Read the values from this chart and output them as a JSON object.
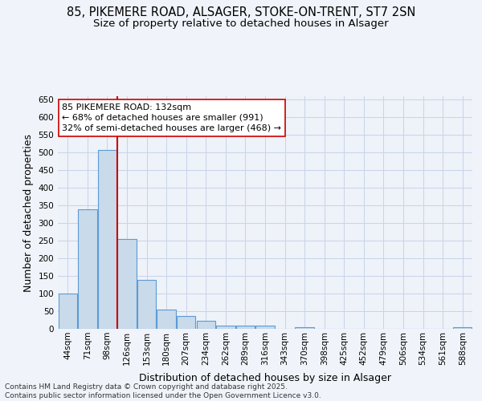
{
  "title": "85, PIKEMERE ROAD, ALSAGER, STOKE-ON-TRENT, ST7 2SN",
  "subtitle": "Size of property relative to detached houses in Alsager",
  "xlabel": "Distribution of detached houses by size in Alsager",
  "ylabel": "Number of detached properties",
  "categories": [
    "44sqm",
    "71sqm",
    "98sqm",
    "126sqm",
    "153sqm",
    "180sqm",
    "207sqm",
    "234sqm",
    "262sqm",
    "289sqm",
    "316sqm",
    "343sqm",
    "370sqm",
    "398sqm",
    "425sqm",
    "452sqm",
    "479sqm",
    "506sqm",
    "534sqm",
    "561sqm",
    "588sqm"
  ],
  "values": [
    100,
    338,
    507,
    254,
    138,
    55,
    36,
    22,
    10,
    10,
    10,
    0,
    5,
    0,
    0,
    0,
    0,
    0,
    0,
    0,
    5
  ],
  "bar_color": "#c9daea",
  "bar_edge_color": "#5b9bd5",
  "vline_color": "#cc0000",
  "vline_x": 2.5,
  "annotation_line1": "85 PIKEMERE ROAD: 132sqm",
  "annotation_line2": "← 68% of detached houses are smaller (991)",
  "annotation_line3": "32% of semi-detached houses are larger (468) →",
  "annotation_box_color": "#ffffff",
  "annotation_box_edge": "#cc0000",
  "ylim": [
    0,
    660
  ],
  "yticks": [
    0,
    50,
    100,
    150,
    200,
    250,
    300,
    350,
    400,
    450,
    500,
    550,
    600,
    650
  ],
  "background_color": "#f0f4fa",
  "plot_bg_color": "#eef2f9",
  "grid_color": "#c8d4e8",
  "footer_line1": "Contains HM Land Registry data © Crown copyright and database right 2025.",
  "footer_line2": "Contains public sector information licensed under the Open Government Licence v3.0.",
  "title_fontsize": 10.5,
  "subtitle_fontsize": 9.5,
  "axis_label_fontsize": 9,
  "tick_fontsize": 7.5,
  "annotation_fontsize": 8,
  "footer_fontsize": 6.5
}
